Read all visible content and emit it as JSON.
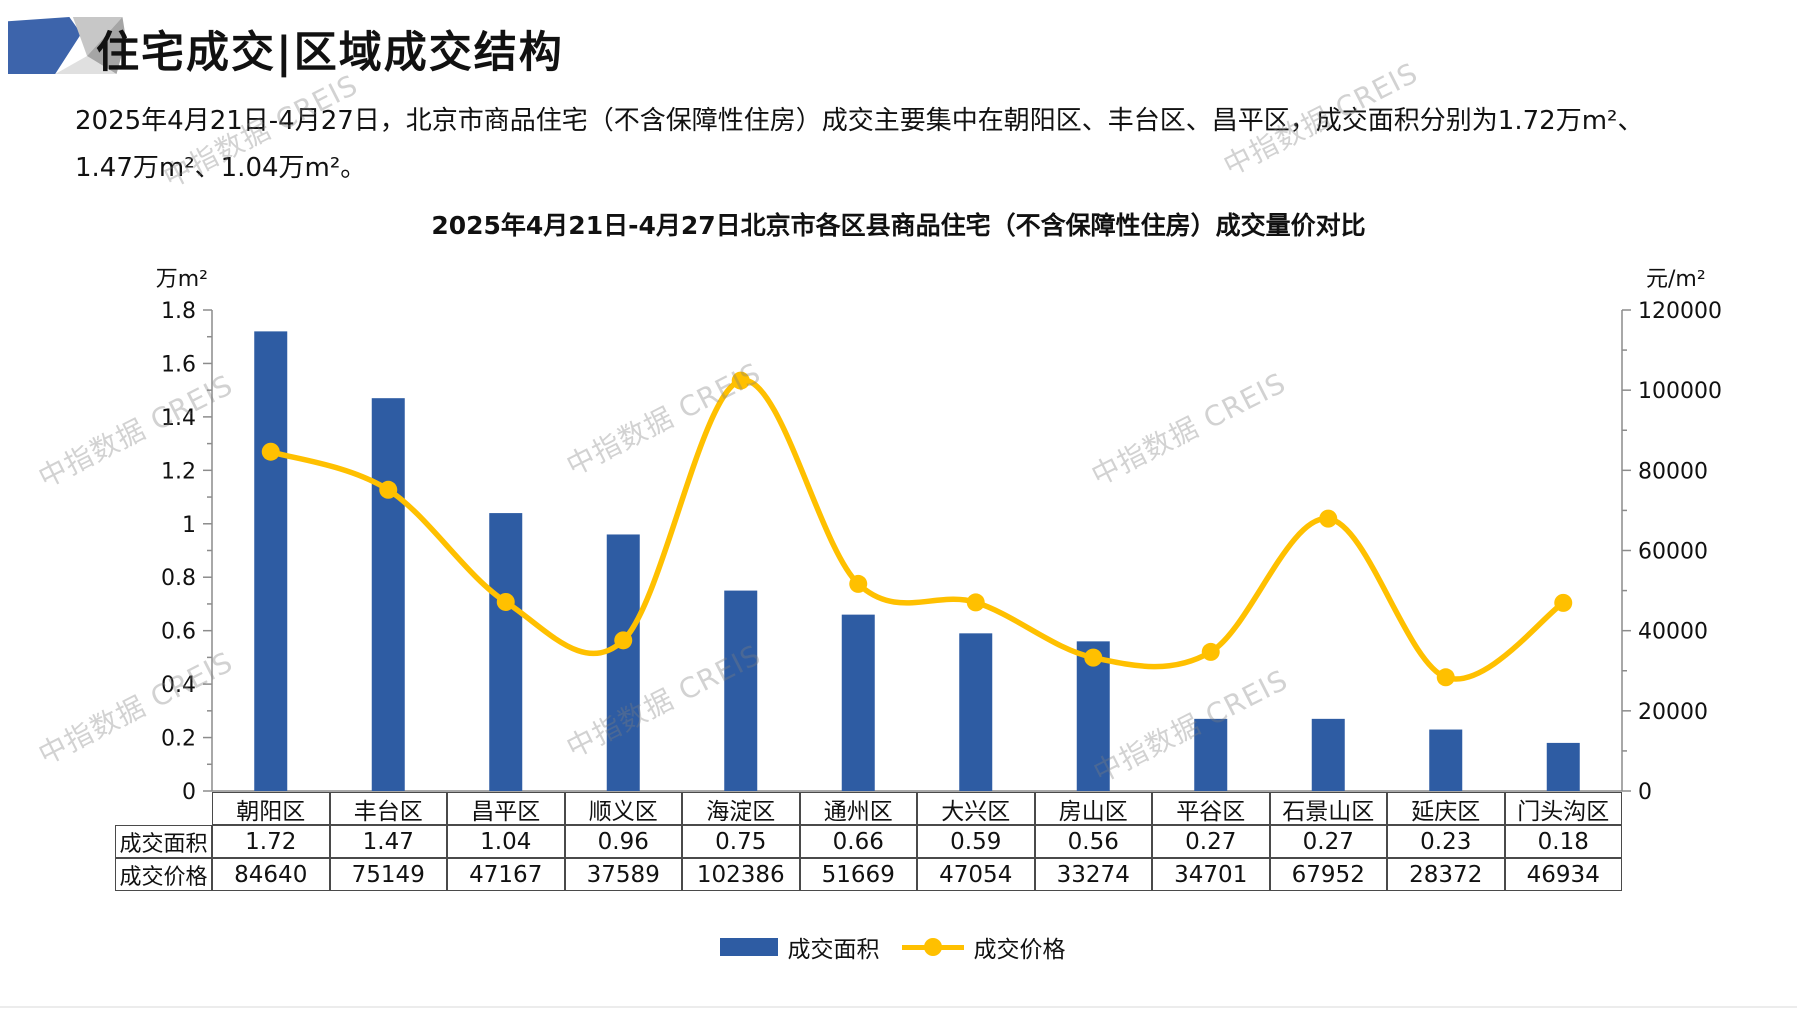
{
  "page": {
    "title": "住宅成交|区域成交结构",
    "description_line1": "2025年4月21日-4月27日，北京市商品住宅（不含保障性住房）成交主要集中在朝阳区、丰台区、昌平区，成交面积分别为1.72万m²、",
    "description_line2": "1.47万m²、1.04万m²。",
    "watermark": "中指数据 CREIS"
  },
  "chart_data": {
    "type": "bar+line combo",
    "title": "2025年4月21日-4月27日北京市各区县商品住宅（不含保障性住房）成交量价对比",
    "categories": [
      "朝阳区",
      "丰台区",
      "昌平区",
      "顺义区",
      "海淀区",
      "通州区",
      "大兴区",
      "房山区",
      "平谷区",
      "石景山区",
      "延庆区",
      "门头沟区"
    ],
    "series": [
      {
        "name": "成交面积",
        "type": "bar",
        "axis": "left",
        "unit": "万m²",
        "color": "#2e5ca3",
        "values": [
          1.72,
          1.47,
          1.04,
          0.96,
          0.75,
          0.66,
          0.59,
          0.56,
          0.27,
          0.27,
          0.23,
          0.18
        ]
      },
      {
        "name": "成交价格",
        "type": "line",
        "axis": "right",
        "unit": "元/m²",
        "color": "#ffc000",
        "values": [
          84640,
          75149,
          47167,
          37589,
          102386,
          51669,
          47054,
          33274,
          34701,
          67952,
          28372,
          46934
        ]
      }
    ],
    "left_axis": {
      "unit": "万m²",
      "min": 0,
      "max": 1.8,
      "major_step": 0.2,
      "minor_step": 0.1
    },
    "right_axis": {
      "unit": "元/m²",
      "min": 0,
      "max": 120000,
      "major_step": 20000,
      "minor_step": 10000
    },
    "grid": false,
    "legend_position": "bottom",
    "axis_color": "#8c8c8c",
    "text_color": "#111111"
  },
  "table": {
    "corner": "",
    "columns": [
      "朝阳区",
      "丰台区",
      "昌平区",
      "顺义区",
      "海淀区",
      "通州区",
      "大兴区",
      "房山区",
      "平谷区",
      "石景山区",
      "延庆区",
      "门头沟区"
    ],
    "rows": [
      {
        "header": "成交面积",
        "values": [
          "1.72",
          "1.47",
          "1.04",
          "0.96",
          "0.75",
          "0.66",
          "0.59",
          "0.56",
          "0.27",
          "0.27",
          "0.23",
          "0.18"
        ]
      },
      {
        "header": "成交价格",
        "values": [
          "84640",
          "75149",
          "47167",
          "37589",
          "102386",
          "51669",
          "47054",
          "33274",
          "34701",
          "67952",
          "28372",
          "46934"
        ]
      }
    ]
  }
}
